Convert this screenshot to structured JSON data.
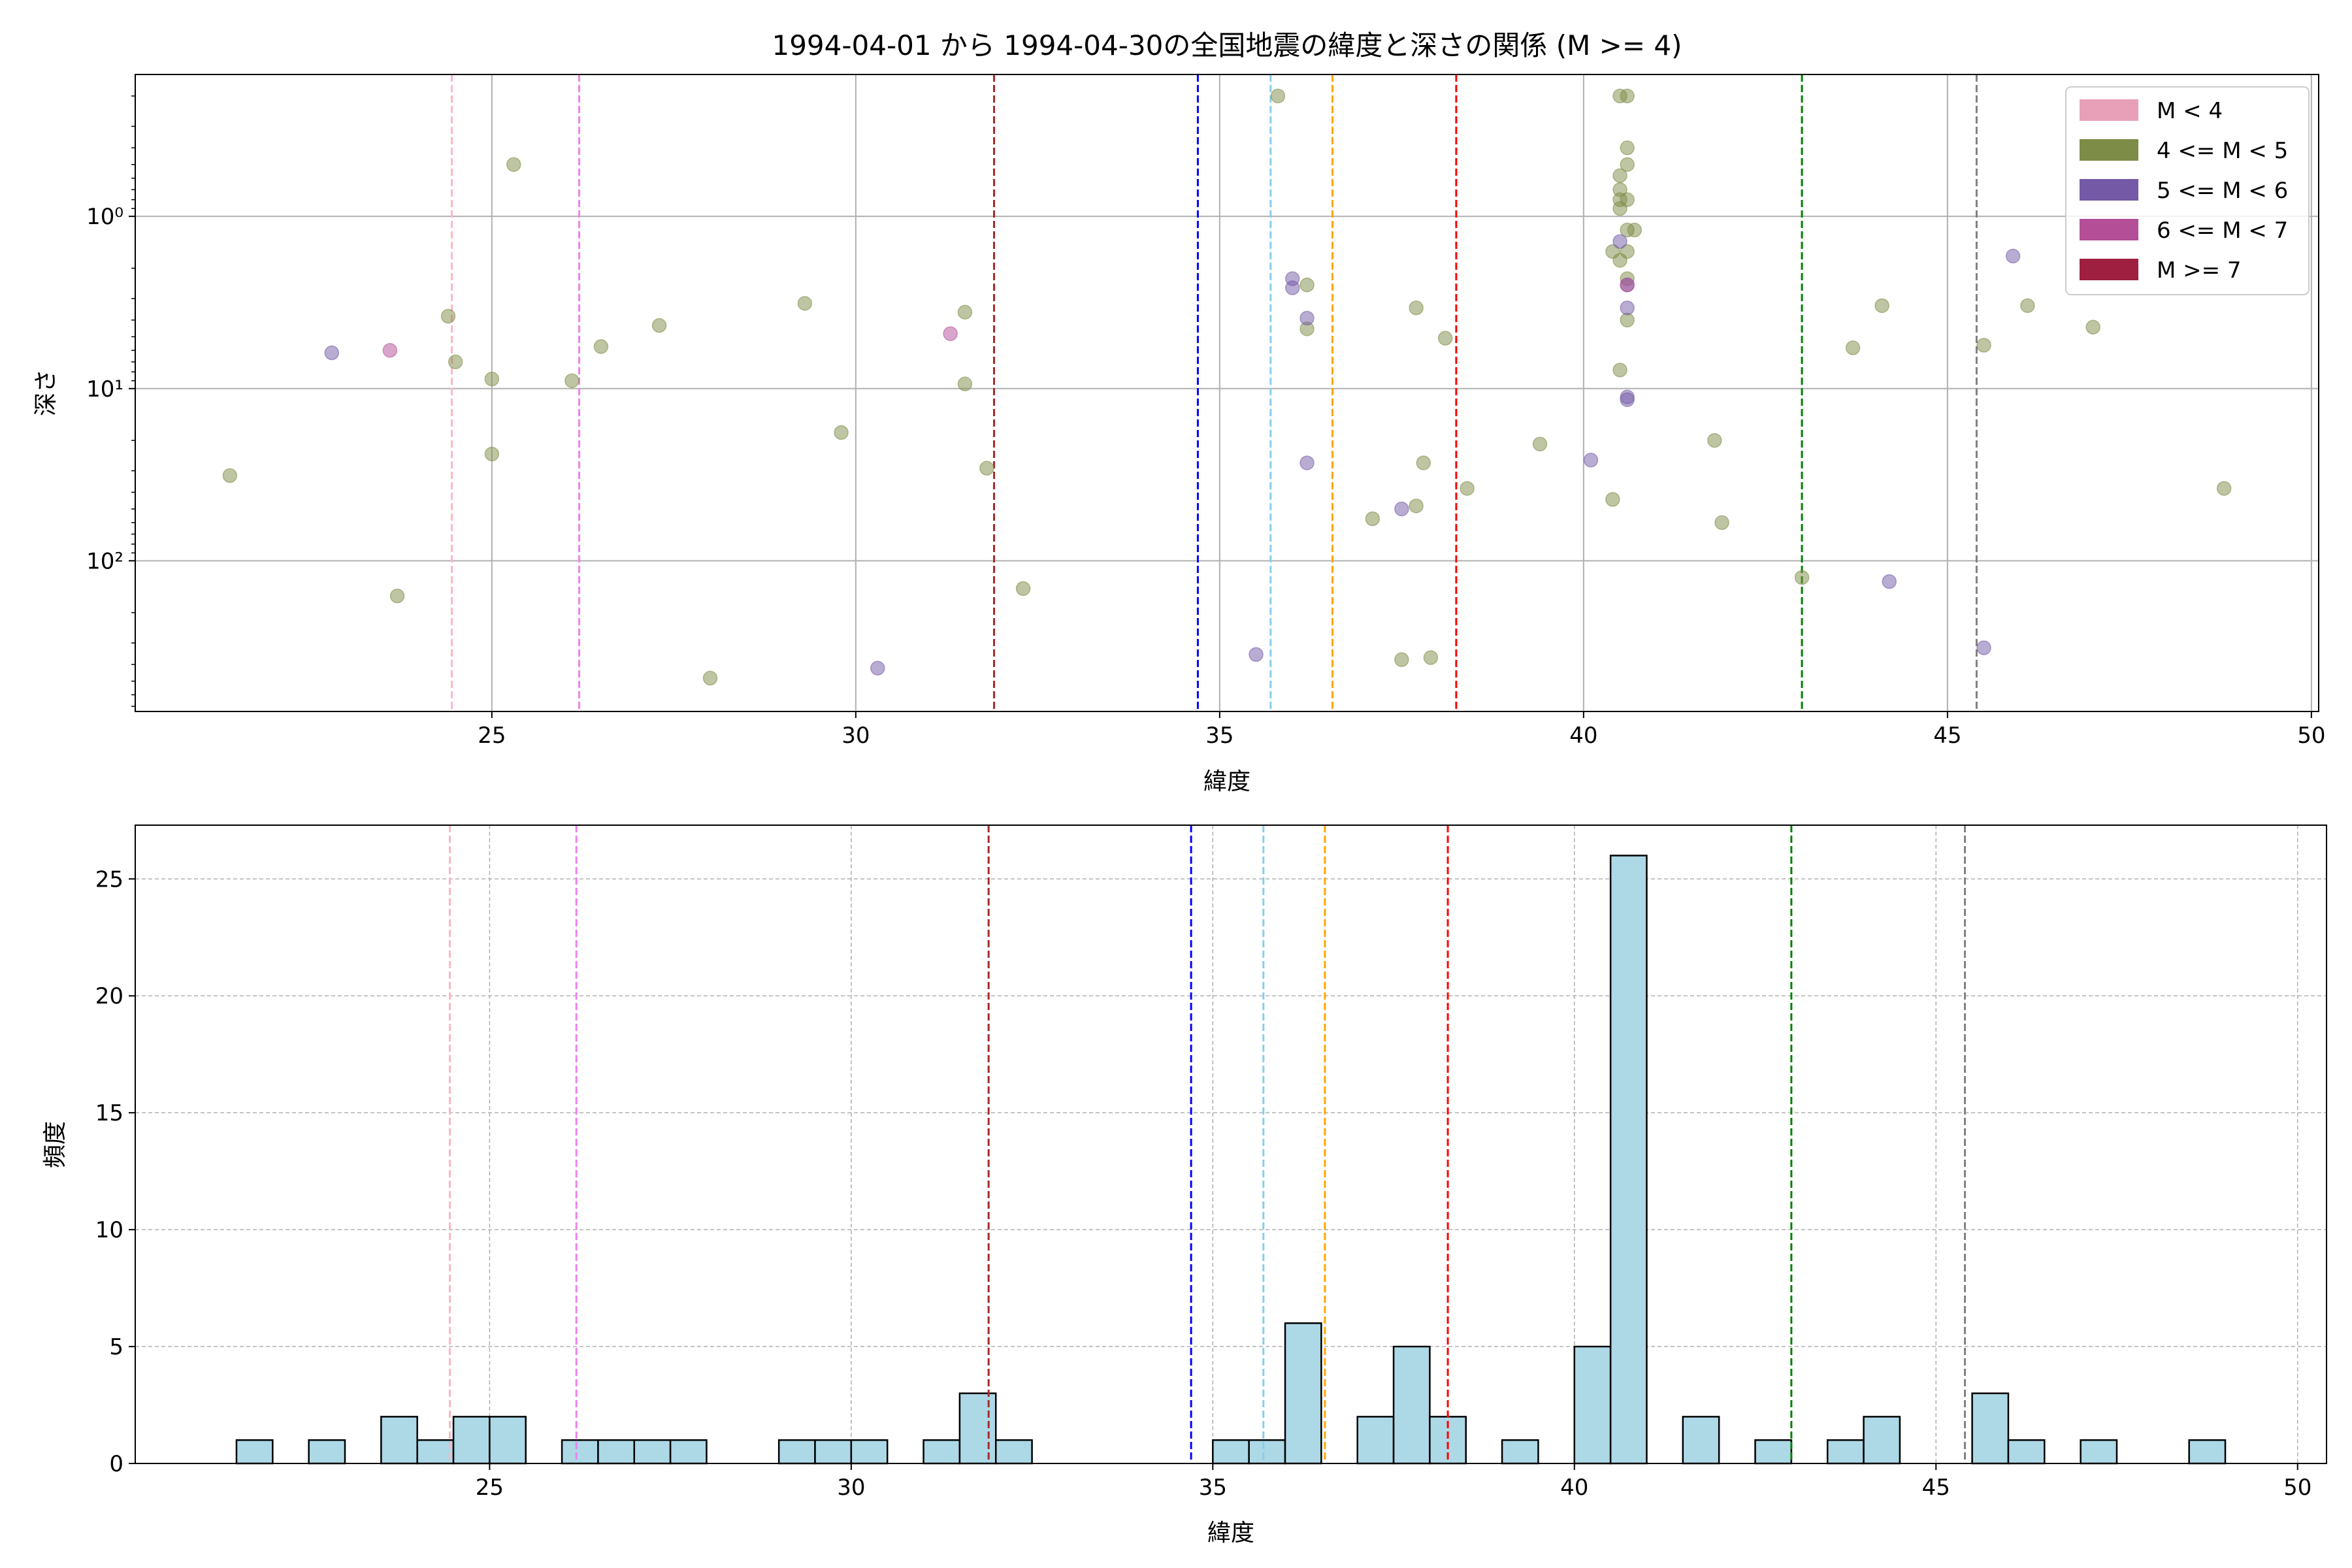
{
  "figure": {
    "title": "1994-04-01 から 1994-04-30の全国地震の緯度と深さの関係 (M >= 4)"
  },
  "colors": {
    "m_lt4": "#e8a0b8",
    "m4_5": "#7d8c46",
    "m5_6": "#7359a6",
    "m6_7": "#b34e97",
    "m_ge7": "#9e1f3f",
    "hist_fill": "#add8e6",
    "hist_edge": "#000000",
    "grid": "#b0b0b0"
  },
  "chart_data": [
    {
      "type": "scatter",
      "xlabel": "緯度",
      "ylabel": "深さ",
      "xlim": [
        20.1,
        50.1
      ],
      "y_scale": "log",
      "y_inverted": true,
      "ylim": [
        0.15,
        750
      ],
      "xticks": [
        25,
        30,
        35,
        40,
        45,
        50
      ],
      "yticks": [
        {
          "value": 1,
          "label": "10⁰"
        },
        {
          "value": 10,
          "label": "10¹"
        },
        {
          "value": 100,
          "label": "10²"
        }
      ],
      "grid": true,
      "legend_position": "top-right",
      "legend": [
        {
          "label": "M < 4",
          "color_key": "m_lt4"
        },
        {
          "label": "4 <= M < 5",
          "color_key": "m4_5"
        },
        {
          "label": "5 <= M < 6",
          "color_key": "m5_6"
        },
        {
          "label": "6 <= M < 7",
          "color_key": "m6_7"
        },
        {
          "label": "M >= 7",
          "color_key": "m_ge7"
        }
      ],
      "vlines": [
        {
          "x": 24.45,
          "color": "#ffb6c1"
        },
        {
          "x": 26.2,
          "color": "#ee82ee"
        },
        {
          "x": 31.9,
          "color": "#a52a2a"
        },
        {
          "x": 34.7,
          "color": "#0000ff"
        },
        {
          "x": 35.7,
          "color": "#87ceeb"
        },
        {
          "x": 36.55,
          "color": "#ffa500"
        },
        {
          "x": 38.25,
          "color": "#ff0000"
        },
        {
          "x": 43.0,
          "color": "#008000"
        },
        {
          "x": 45.4,
          "color": "#808080"
        }
      ],
      "series": [
        {
          "name": "4 <= M < 5",
          "color_key": "m4_5",
          "points": [
            [
              21.4,
              32
            ],
            [
              23.7,
              160
            ],
            [
              24.4,
              3.8
            ],
            [
              24.5,
              7
            ],
            [
              25.0,
              8.8
            ],
            [
              25.0,
              24
            ],
            [
              25.3,
              0.5
            ],
            [
              26.1,
              9
            ],
            [
              26.5,
              5.7
            ],
            [
              27.3,
              4.3
            ],
            [
              28.0,
              480
            ],
            [
              29.3,
              3.2
            ],
            [
              29.8,
              18
            ],
            [
              31.5,
              3.6
            ],
            [
              31.5,
              9.4
            ],
            [
              31.8,
              29
            ],
            [
              32.3,
              145
            ],
            [
              35.8,
              0.2
            ],
            [
              36.2,
              2.5
            ],
            [
              36.2,
              4.5
            ],
            [
              37.1,
              57
            ],
            [
              37.5,
              375
            ],
            [
              37.7,
              3.4
            ],
            [
              37.7,
              48
            ],
            [
              37.8,
              27
            ],
            [
              37.9,
              365
            ],
            [
              38.1,
              5.1
            ],
            [
              38.4,
              38
            ],
            [
              39.4,
              21
            ],
            [
              40.4,
              1.6
            ],
            [
              40.4,
              44
            ],
            [
              40.5,
              0.2
            ],
            [
              40.5,
              0.58
            ],
            [
              40.5,
              0.7
            ],
            [
              40.5,
              0.8
            ],
            [
              40.5,
              0.9
            ],
            [
              40.5,
              1.8
            ],
            [
              40.5,
              7.8
            ],
            [
              40.6,
              0.2
            ],
            [
              40.6,
              0.4
            ],
            [
              40.6,
              0.5
            ],
            [
              40.6,
              0.8
            ],
            [
              40.6,
              1.2
            ],
            [
              40.6,
              1.6
            ],
            [
              40.6,
              2.3
            ],
            [
              40.6,
              4.0
            ],
            [
              40.7,
              1.2
            ],
            [
              41.8,
              20
            ],
            [
              41.9,
              60
            ],
            [
              43.0,
              125
            ],
            [
              43.7,
              5.8
            ],
            [
              44.1,
              3.3
            ],
            [
              45.5,
              5.6
            ],
            [
              46.1,
              3.3
            ],
            [
              47.0,
              4.4
            ],
            [
              48.8,
              38
            ]
          ]
        },
        {
          "name": "5 <= M < 6",
          "color_key": "m5_6",
          "points": [
            [
              22.8,
              6.2
            ],
            [
              30.3,
              420
            ],
            [
              35.5,
              350
            ],
            [
              36.0,
              2.3
            ],
            [
              36.0,
              2.6
            ],
            [
              36.2,
              3.9
            ],
            [
              36.2,
              27
            ],
            [
              37.5,
              50
            ],
            [
              40.1,
              26
            ],
            [
              40.5,
              1.4
            ],
            [
              40.6,
              2.5
            ],
            [
              40.6,
              3.4
            ],
            [
              40.6,
              11.2
            ],
            [
              40.6,
              11.6
            ],
            [
              44.2,
              132
            ],
            [
              45.5,
              320
            ],
            [
              45.9,
              1.7
            ]
          ]
        },
        {
          "name": "6 <= M < 7",
          "color_key": "m6_7",
          "points": [
            [
              23.6,
              6.0
            ],
            [
              31.3,
              4.8
            ],
            [
              40.6,
              2.5
            ]
          ]
        }
      ]
    },
    {
      "type": "bar",
      "xlabel": "緯度",
      "ylabel": "頻度",
      "xlim": [
        20.1,
        50.4
      ],
      "ylim": [
        0,
        27.3
      ],
      "xticks": [
        25,
        30,
        35,
        40,
        45,
        50
      ],
      "yticks": [
        0,
        5,
        10,
        15,
        20,
        25
      ],
      "grid": true,
      "bin_width": 0.5,
      "bins": [
        [
          21.5,
          1
        ],
        [
          22.5,
          1
        ],
        [
          23.5,
          2
        ],
        [
          24.0,
          1
        ],
        [
          24.5,
          2
        ],
        [
          25.0,
          2
        ],
        [
          26.0,
          1
        ],
        [
          26.5,
          1
        ],
        [
          27.0,
          1
        ],
        [
          27.5,
          1
        ],
        [
          29.0,
          1
        ],
        [
          29.5,
          1
        ],
        [
          30.0,
          1
        ],
        [
          31.0,
          1
        ],
        [
          31.5,
          3
        ],
        [
          32.0,
          1
        ],
        [
          35.0,
          1
        ],
        [
          35.5,
          1
        ],
        [
          36.0,
          6
        ],
        [
          37.0,
          2
        ],
        [
          37.5,
          5
        ],
        [
          38.0,
          2
        ],
        [
          39.0,
          1
        ],
        [
          40.0,
          5
        ],
        [
          40.5,
          26
        ],
        [
          41.5,
          2
        ],
        [
          42.5,
          1
        ],
        [
          43.5,
          1
        ],
        [
          44.0,
          2
        ],
        [
          45.5,
          3
        ],
        [
          46.0,
          1
        ],
        [
          47.0,
          1
        ],
        [
          48.5,
          1
        ]
      ],
      "vlines": [
        {
          "x": 24.45,
          "color": "#ffb6c1"
        },
        {
          "x": 26.2,
          "color": "#ee82ee"
        },
        {
          "x": 31.9,
          "color": "#a52a2a"
        },
        {
          "x": 34.7,
          "color": "#0000ff"
        },
        {
          "x": 35.7,
          "color": "#87ceeb"
        },
        {
          "x": 36.55,
          "color": "#ffa500"
        },
        {
          "x": 38.25,
          "color": "#ff0000"
        },
        {
          "x": 43.0,
          "color": "#008000"
        },
        {
          "x": 45.4,
          "color": "#808080"
        }
      ]
    }
  ]
}
